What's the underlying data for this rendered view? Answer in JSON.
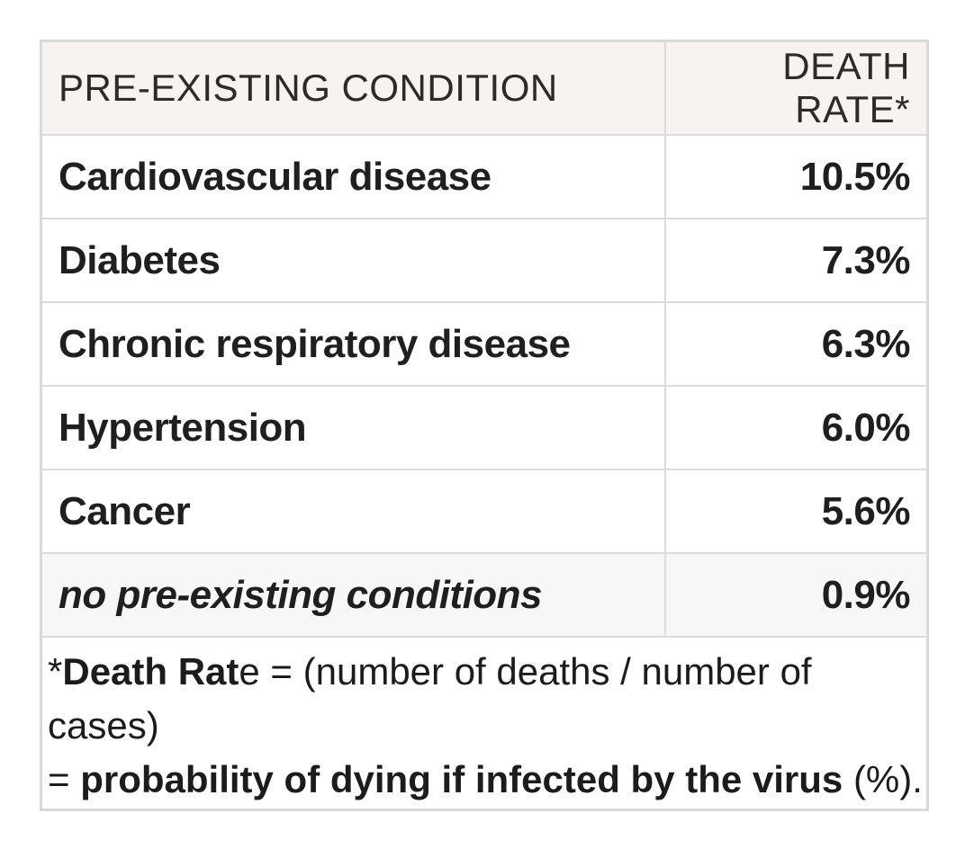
{
  "colors": {
    "page_bg": "#ffffff",
    "border": "#dcdcdc",
    "outer_border": "#d9d9d9",
    "header_bg": "#f8f2f0",
    "highlight_row_bg": "#f8f7f7",
    "text": "#1f1f1f"
  },
  "table": {
    "columns": [
      {
        "label": "PRE-EXISTING CONDITION",
        "align": "left"
      },
      {
        "label": "DEATH RATE*",
        "align": "right"
      }
    ],
    "rows": [
      {
        "condition": "Cardiovascular disease",
        "death_rate": "10.5%",
        "italic": false,
        "highlight": false
      },
      {
        "condition": "Diabetes",
        "death_rate": "7.3%",
        "italic": false,
        "highlight": false
      },
      {
        "condition": "Chronic respiratory disease",
        "death_rate": "6.3%",
        "italic": false,
        "highlight": false
      },
      {
        "condition": "Hypertension",
        "death_rate": "6.0%",
        "italic": false,
        "highlight": false
      },
      {
        "condition": "Cancer",
        "death_rate": "5.6%",
        "italic": false,
        "highlight": false
      },
      {
        "condition": "no pre-existing conditions",
        "death_rate": "0.9%",
        "italic": true,
        "highlight": true
      }
    ],
    "footnote_lines": [
      [
        {
          "text": "*",
          "bold": false
        },
        {
          "text": "Death Rat",
          "bold": true
        },
        {
          "text": "e = (number of deaths / number of cases)",
          "bold": false
        }
      ],
      [
        {
          "text": "= ",
          "bold": false
        },
        {
          "text": "probability of dying if infected by the virus",
          "bold": true
        },
        {
          "text": " (%).",
          "bold": false
        }
      ]
    ]
  },
  "chart_data": {
    "type": "table",
    "title": "",
    "columns": [
      "PRE-EXISTING CONDITION",
      "DEATH RATE*"
    ],
    "categories": [
      "Cardiovascular disease",
      "Diabetes",
      "Chronic respiratory disease",
      "Hypertension",
      "Cancer",
      "no pre-existing conditions"
    ],
    "values": [
      10.5,
      7.3,
      6.3,
      6.0,
      5.6,
      0.9
    ],
    "value_unit": "%",
    "note": "*Death Rate = (number of deaths / number of cases) = probability of dying if infected by the virus (%)."
  }
}
